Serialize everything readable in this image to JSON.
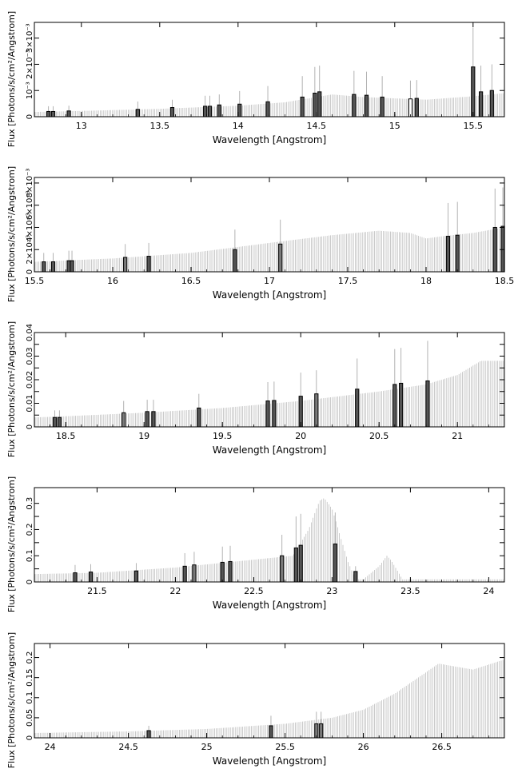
{
  "figure": {
    "panel_ylabel": "Flux [Photons/s/cm²/Angstrom]",
    "panel_xlabel": "Wavelength [Angstrom]"
  },
  "chart_data": [
    {
      "type": "bar",
      "title": "",
      "xlabel": "Wavelength [Angstrom]",
      "ylabel": "Flux [Photons/s/cm²/Angstrom]",
      "xlim": [
        12.7,
        15.7
      ],
      "ylim": [
        0,
        0.0036
      ],
      "x_ticks": [
        13,
        13.5,
        14,
        14.5,
        15,
        15.5
      ],
      "x_tick_labels": [
        "13",
        "13.5",
        "14",
        "14.5",
        "15",
        "15.5"
      ],
      "y_ticks": [
        0,
        0.001,
        0.002,
        0.003
      ],
      "y_tick_labels": [
        "0",
        "10⁻³",
        "2×10⁻³",
        "3×10⁻³"
      ],
      "grid": false,
      "continuum": {
        "x": [
          12.7,
          13.0,
          13.5,
          14.0,
          14.3,
          14.5,
          14.6,
          14.8,
          15.0,
          15.2,
          15.5,
          15.7
        ],
        "y": [
          0.00018,
          0.00022,
          0.0003,
          0.00042,
          0.00055,
          0.00075,
          0.00085,
          0.00075,
          0.0007,
          0.00065,
          0.00078,
          0.0009
        ]
      },
      "bins": [
        {
          "x": 12.79,
          "value": 0.0002,
          "err": 0.0002,
          "shade": "dark"
        },
        {
          "x": 12.82,
          "value": 0.0002,
          "err": 0.0002,
          "shade": "dark"
        },
        {
          "x": 12.92,
          "value": 0.00022,
          "err": 0.0002,
          "shade": "dark"
        },
        {
          "x": 13.36,
          "value": 0.00028,
          "err": 0.0003,
          "shade": "dark"
        },
        {
          "x": 13.58,
          "value": 0.00035,
          "err": 0.0003,
          "shade": "dark"
        },
        {
          "x": 13.79,
          "value": 0.0004,
          "err": 0.0004,
          "shade": "dark"
        },
        {
          "x": 13.82,
          "value": 0.0004,
          "err": 0.0004,
          "shade": "dark"
        },
        {
          "x": 13.88,
          "value": 0.00045,
          "err": 0.0004,
          "shade": "dark"
        },
        {
          "x": 14.01,
          "value": 0.00048,
          "err": 0.0005,
          "shade": "dark"
        },
        {
          "x": 14.19,
          "value": 0.00057,
          "err": 0.0006,
          "shade": "dark"
        },
        {
          "x": 14.41,
          "value": 0.00075,
          "err": 0.0008,
          "shade": "dark"
        },
        {
          "x": 14.49,
          "value": 0.0009,
          "err": 0.001,
          "shade": "dark"
        },
        {
          "x": 14.52,
          "value": 0.00095,
          "err": 0.001,
          "shade": "dark"
        },
        {
          "x": 14.74,
          "value": 0.00085,
          "err": 0.0009,
          "shade": "dark"
        },
        {
          "x": 14.82,
          "value": 0.00082,
          "err": 0.0009,
          "shade": "dark"
        },
        {
          "x": 14.92,
          "value": 0.00075,
          "err": 0.0008,
          "shade": "dark"
        },
        {
          "x": 15.1,
          "value": 0.00068,
          "err": 0.0007,
          "shade": "open"
        },
        {
          "x": 15.14,
          "value": 0.0007,
          "err": 0.0007,
          "shade": "dark"
        },
        {
          "x": 15.5,
          "value": 0.0019,
          "err": 0.0015,
          "shade": "dark"
        },
        {
          "x": 15.55,
          "value": 0.00095,
          "err": 0.001,
          "shade": "dark"
        },
        {
          "x": 15.62,
          "value": 0.001,
          "err": 0.001,
          "shade": "dark"
        }
      ]
    },
    {
      "type": "bar",
      "title": "",
      "xlabel": "Wavelength [Angstrom]",
      "ylabel": "Flux [Photons/s/cm²/Angstrom]",
      "xlim": [
        15.5,
        18.5
      ],
      "ylim": [
        0,
        0.0085
      ],
      "x_ticks": [
        15.5,
        16,
        16.5,
        17,
        17.5,
        18,
        18.5
      ],
      "x_tick_labels": [
        "15.5",
        "16",
        "16.5",
        "17",
        "17.5",
        "18",
        "18.5"
      ],
      "y_ticks": [
        0,
        0.002,
        0.004,
        0.006,
        0.008
      ],
      "y_tick_labels": [
        "0",
        "2×10⁻³",
        "4×10⁻³",
        "6×10⁻³",
        "8×10⁻³"
      ],
      "grid": false,
      "continuum": {
        "x": [
          15.5,
          16.0,
          16.5,
          17.0,
          17.4,
          17.7,
          17.9,
          18.0,
          18.1,
          18.3,
          18.5
        ],
        "y": [
          0.0009,
          0.0012,
          0.0017,
          0.0026,
          0.0033,
          0.0037,
          0.0035,
          0.003,
          0.0032,
          0.0035,
          0.004
        ]
      },
      "bins": [
        {
          "x": 15.56,
          "value": 0.0009,
          "err": 0.0008,
          "shade": "dark"
        },
        {
          "x": 15.62,
          "value": 0.0009,
          "err": 0.0008,
          "shade": "dark"
        },
        {
          "x": 15.72,
          "value": 0.001,
          "err": 0.0009,
          "shade": "dark"
        },
        {
          "x": 15.74,
          "value": 0.001,
          "err": 0.0009,
          "shade": "dark"
        },
        {
          "x": 16.08,
          "value": 0.0013,
          "err": 0.0012,
          "shade": "gray"
        },
        {
          "x": 16.23,
          "value": 0.0014,
          "err": 0.0012,
          "shade": "dark"
        },
        {
          "x": 16.78,
          "value": 0.002,
          "err": 0.0018,
          "shade": "dark"
        },
        {
          "x": 17.07,
          "value": 0.0025,
          "err": 0.0022,
          "shade": "gray"
        },
        {
          "x": 18.14,
          "value": 0.0032,
          "err": 0.003,
          "shade": "dark"
        },
        {
          "x": 18.2,
          "value": 0.0033,
          "err": 0.003,
          "shade": "dark"
        },
        {
          "x": 18.44,
          "value": 0.004,
          "err": 0.0035,
          "shade": "dark"
        },
        {
          "x": 18.49,
          "value": 0.0041,
          "err": 0.0035,
          "shade": "dark"
        }
      ]
    },
    {
      "type": "bar",
      "title": "",
      "xlabel": "Wavelength [Angstrom]",
      "ylabel": "Flux [Photons/s/cm²/Angstrom]",
      "xlim": [
        18.3,
        21.3
      ],
      "ylim": [
        0,
        0.04
      ],
      "x_ticks": [
        18.5,
        19,
        19.5,
        20,
        20.5,
        21
      ],
      "x_tick_labels": [
        "18.5",
        "19",
        "19.5",
        "20",
        "20.5",
        "21"
      ],
      "y_ticks": [
        0,
        0.005,
        0.01,
        0.015,
        0.02,
        0.025,
        0.03,
        0.035,
        0.04
      ],
      "y_tick_labels": [
        "0",
        "",
        "0.01",
        "",
        "0.02",
        "",
        "0.03",
        "",
        "0.04"
      ],
      "grid": false,
      "continuum": {
        "x": [
          18.3,
          18.5,
          19.0,
          19.5,
          20.0,
          20.5,
          20.8,
          21.0,
          21.15,
          21.3
        ],
        "y": [
          0.004,
          0.0045,
          0.006,
          0.008,
          0.011,
          0.015,
          0.018,
          0.022,
          0.028,
          0.028
        ]
      },
      "bins": [
        {
          "x": 18.43,
          "value": 0.004,
          "err": 0.003,
          "shade": "dark"
        },
        {
          "x": 18.46,
          "value": 0.004,
          "err": 0.003,
          "shade": "dark"
        },
        {
          "x": 18.87,
          "value": 0.006,
          "err": 0.005,
          "shade": "gray"
        },
        {
          "x": 19.02,
          "value": 0.0065,
          "err": 0.005,
          "shade": "dark"
        },
        {
          "x": 19.06,
          "value": 0.0065,
          "err": 0.005,
          "shade": "dark"
        },
        {
          "x": 19.35,
          "value": 0.008,
          "err": 0.006,
          "shade": "dark"
        },
        {
          "x": 19.79,
          "value": 0.011,
          "err": 0.008,
          "shade": "dark"
        },
        {
          "x": 19.83,
          "value": 0.0112,
          "err": 0.008,
          "shade": "dark"
        },
        {
          "x": 20.0,
          "value": 0.013,
          "err": 0.01,
          "shade": "dark"
        },
        {
          "x": 20.1,
          "value": 0.014,
          "err": 0.01,
          "shade": "gray"
        },
        {
          "x": 20.36,
          "value": 0.016,
          "err": 0.013,
          "shade": "dark"
        },
        {
          "x": 20.6,
          "value": 0.018,
          "err": 0.015,
          "shade": "dark"
        },
        {
          "x": 20.64,
          "value": 0.0185,
          "err": 0.015,
          "shade": "dark"
        },
        {
          "x": 20.81,
          "value": 0.0195,
          "err": 0.017,
          "shade": "dark"
        }
      ]
    },
    {
      "type": "bar",
      "title": "",
      "xlabel": "Wavelength [Angstrom]",
      "ylabel": "Flux [Photons/s/cm²/Angstrom]",
      "xlim": [
        21.1,
        24.1
      ],
      "ylim": [
        0,
        0.36
      ],
      "x_ticks": [
        21.5,
        22,
        22.5,
        23,
        23.5,
        24
      ],
      "x_tick_labels": [
        "21.5",
        "22",
        "22.5",
        "23",
        "23.5",
        "24"
      ],
      "y_ticks": [
        0,
        0.05,
        0.1,
        0.15,
        0.2,
        0.25,
        0.3
      ],
      "y_tick_labels": [
        "0",
        "",
        "0.1",
        "",
        "0.2",
        "",
        "0.3"
      ],
      "grid": false,
      "continuum": {
        "x": [
          21.1,
          21.5,
          22.0,
          22.5,
          22.75,
          22.85,
          22.92,
          22.95,
          23.0,
          23.05,
          23.1,
          23.15,
          23.2,
          23.3,
          23.35,
          23.38,
          23.45,
          24.1
        ],
        "y": [
          0.03,
          0.035,
          0.055,
          0.085,
          0.1,
          0.2,
          0.31,
          0.32,
          0.28,
          0.18,
          0.08,
          0.01,
          0.01,
          0.06,
          0.1,
          0.08,
          0.01,
          0.01
        ]
      },
      "bins": [
        {
          "x": 21.36,
          "value": 0.035,
          "err": 0.03,
          "shade": "dark"
        },
        {
          "x": 21.46,
          "value": 0.038,
          "err": 0.03,
          "shade": "dark"
        },
        {
          "x": 21.75,
          "value": 0.042,
          "err": 0.03,
          "shade": "dark"
        },
        {
          "x": 22.06,
          "value": 0.06,
          "err": 0.05,
          "shade": "dark"
        },
        {
          "x": 22.12,
          "value": 0.065,
          "err": 0.05,
          "shade": "gray"
        },
        {
          "x": 22.3,
          "value": 0.075,
          "err": 0.06,
          "shade": "dark"
        },
        {
          "x": 22.35,
          "value": 0.078,
          "err": 0.06,
          "shade": "dark"
        },
        {
          "x": 22.68,
          "value": 0.1,
          "err": 0.08,
          "shade": "gray"
        },
        {
          "x": 22.77,
          "value": 0.13,
          "err": 0.12,
          "shade": "dark"
        },
        {
          "x": 22.8,
          "value": 0.14,
          "err": 0.12,
          "shade": "dark"
        },
        {
          "x": 23.02,
          "value": 0.145,
          "err": 0.12,
          "shade": "dark"
        },
        {
          "x": 23.15,
          "value": 0.04,
          "err": 0.02,
          "shade": "dark"
        }
      ]
    },
    {
      "type": "bar",
      "title": "",
      "xlabel": "Wavelength [Angstrom]",
      "ylabel": "Flux [Photons/s/cm²/Angstrom]",
      "xlim": [
        23.9,
        26.9
      ],
      "ylim": [
        0,
        0.235
      ],
      "x_ticks": [
        24,
        24.5,
        25,
        25.5,
        26,
        26.5
      ],
      "x_tick_labels": [
        "24",
        "24.5",
        "25",
        "25.5",
        "26",
        "26.5"
      ],
      "y_ticks": [
        0,
        0.05,
        0.1,
        0.15,
        0.2
      ],
      "y_tick_labels": [
        "0",
        "0.05",
        "0.1",
        "0.15",
        "0.2"
      ],
      "grid": false,
      "continuum": {
        "x": [
          23.9,
          24.5,
          25.0,
          25.5,
          25.8,
          26.0,
          26.2,
          26.35,
          26.48,
          26.55,
          26.7,
          26.9
        ],
        "y": [
          0.012,
          0.016,
          0.022,
          0.035,
          0.05,
          0.07,
          0.11,
          0.15,
          0.185,
          0.18,
          0.17,
          0.195
        ]
      },
      "bins": [
        {
          "x": 24.63,
          "value": 0.018,
          "err": 0.012,
          "shade": "dark"
        },
        {
          "x": 25.41,
          "value": 0.03,
          "err": 0.025,
          "shade": "dark"
        },
        {
          "x": 25.7,
          "value": 0.035,
          "err": 0.03,
          "shade": "gray"
        },
        {
          "x": 25.73,
          "value": 0.035,
          "err": 0.03,
          "shade": "gray"
        }
      ]
    }
  ]
}
